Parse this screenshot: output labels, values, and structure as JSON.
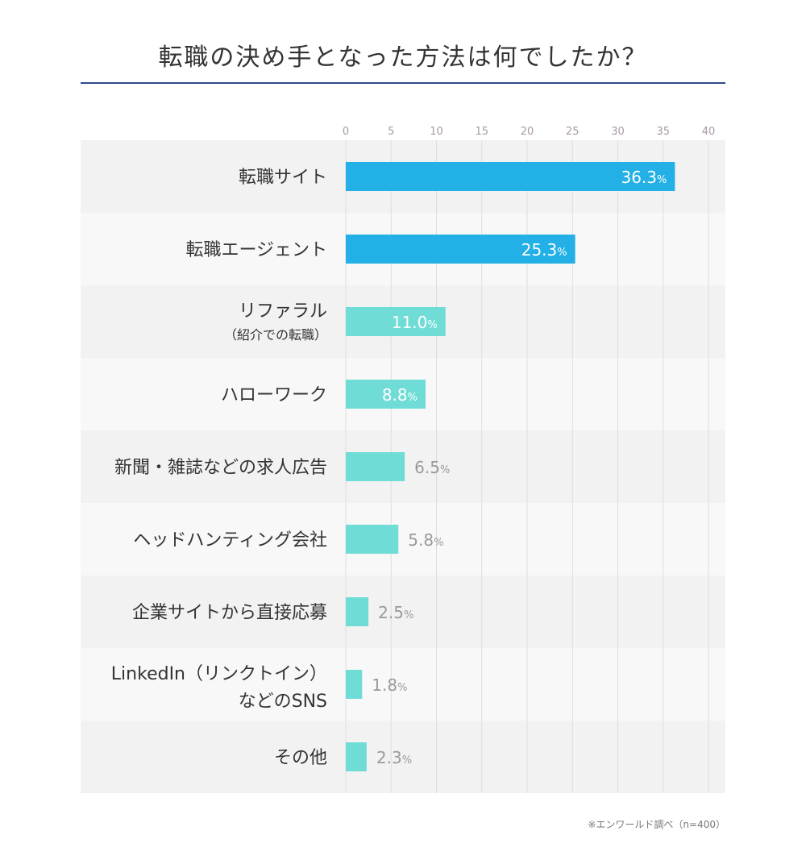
{
  "title": "転職の決め手となった方法は何でしたか？",
  "footnote": "※エンワールド調べ（n=400）",
  "chart_data": {
    "type": "bar",
    "orientation": "horizontal",
    "title": "転職の決め手となった方法は何でしたか？",
    "xlabel": "",
    "ylabel": "",
    "xlim": [
      0,
      40
    ],
    "ticks": [
      "0",
      "5",
      "10",
      "15",
      "20",
      "25",
      "30",
      "35",
      "40"
    ],
    "grid": true,
    "unit": "%",
    "categories": [
      [
        "転職サイト"
      ],
      [
        "転職エージェント"
      ],
      [
        "リファラル",
        "（紹介での転職）"
      ],
      [
        "ハローワーク"
      ],
      [
        "新聞・雑誌などの求人広告"
      ],
      [
        "ヘッドハンティング会社"
      ],
      [
        "企業サイトから直接応募"
      ],
      [
        "LinkedIn（リンクトイン）",
        "などのSNS"
      ],
      [
        "その他"
      ]
    ],
    "values": [
      36.3,
      25.3,
      11.0,
      8.8,
      6.5,
      5.8,
      2.5,
      1.8,
      2.3
    ],
    "value_labels": [
      "36.3",
      "25.3",
      "11.0",
      "8.8",
      "6.5",
      "5.8",
      "2.5",
      "1.8",
      "2.3"
    ],
    "colors": {
      "bar_primary": "#22b0e6",
      "bar_secondary": "#6fdcd6",
      "label_inside": "#ffffff",
      "label_outside": "#9a9a9a",
      "row_odd": "#f2f2f2",
      "row_even": "#f8f8f8",
      "grid": "#dddddd",
      "tick": "#a89aa6"
    },
    "bar_styles": [
      "primary",
      "primary",
      "secondary",
      "secondary",
      "secondary",
      "secondary",
      "secondary",
      "secondary",
      "secondary"
    ],
    "label_positions": [
      "inside",
      "inside",
      "inside",
      "inside",
      "outside",
      "outside",
      "outside",
      "outside",
      "outside"
    ]
  }
}
